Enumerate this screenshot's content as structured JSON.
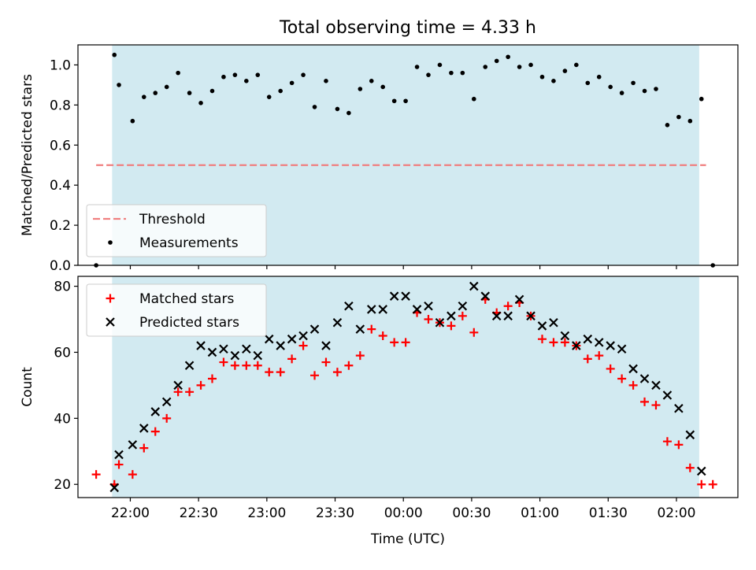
{
  "title": "Total observing time = 4.33 h",
  "colors": {
    "observing_window": "#add8e6",
    "threshold": "#f08080",
    "measurements": "#000000",
    "matched": "#ff0000",
    "predicted": "#000000"
  },
  "chart_data": [
    {
      "type": "scatter",
      "title": "Total observing time = 4.33 h",
      "xlabel": "",
      "ylabel": "Matched/Predicted stars",
      "xlim": [
        "21:37",
        "02:27"
      ],
      "ylim": [
        0,
        1.1
      ],
      "yticks": [
        "0.0",
        "0.2",
        "0.4",
        "0.6",
        "0.8",
        "1.0"
      ],
      "observing_window": [
        "21:52",
        "02:10"
      ],
      "threshold": {
        "name": "Threshold",
        "value": 0.5,
        "x_range": [
          "21:45",
          "02:13"
        ]
      },
      "legend": {
        "position": "bottom-left",
        "entries": [
          "Threshold",
          "Measurements"
        ]
      },
      "series": [
        {
          "name": "Measurements",
          "x": [
            "21:45",
            "21:53",
            "21:55",
            "22:01",
            "22:06",
            "22:11",
            "22:16",
            "22:21",
            "22:26",
            "22:31",
            "22:36",
            "22:41",
            "22:46",
            "22:51",
            "22:56",
            "23:01",
            "23:06",
            "23:11",
            "23:16",
            "23:21",
            "23:26",
            "23:31",
            "23:36",
            "23:41",
            "23:46",
            "23:51",
            "23:56",
            "24:01",
            "24:06",
            "24:11",
            "24:16",
            "24:21",
            "24:26",
            "24:31",
            "24:36",
            "24:41",
            "24:46",
            "24:51",
            "24:56",
            "25:01",
            "25:06",
            "25:11",
            "25:16",
            "25:21",
            "25:26",
            "25:31",
            "25:36",
            "25:41",
            "25:46",
            "25:51",
            "25:56",
            "26:01",
            "26:06",
            "26:11",
            "26:16"
          ],
          "y": [
            0.0,
            1.05,
            0.9,
            0.72,
            0.84,
            0.86,
            0.89,
            0.96,
            0.86,
            0.81,
            0.87,
            0.94,
            0.95,
            0.92,
            0.95,
            0.84,
            0.87,
            0.91,
            0.95,
            0.79,
            0.92,
            0.78,
            0.76,
            0.88,
            0.92,
            0.89,
            0.82,
            0.82,
            0.99,
            0.95,
            1.0,
            0.96,
            0.96,
            0.83,
            0.99,
            1.02,
            1.04,
            0.99,
            1.0,
            0.94,
            0.92,
            0.97,
            1.0,
            0.91,
            0.94,
            0.89,
            0.86,
            0.91,
            0.87,
            0.88,
            0.7,
            0.74,
            0.72,
            0.83,
            0.0
          ]
        }
      ]
    },
    {
      "type": "scatter",
      "title": "",
      "xlabel": "Time (UTC)",
      "ylabel": "Count",
      "xlim": [
        "21:37",
        "02:27"
      ],
      "ylim": [
        16,
        83
      ],
      "yticks": [
        "20",
        "40",
        "60",
        "80"
      ],
      "xticks": [
        "22:00",
        "22:30",
        "23:00",
        "23:30",
        "00:00",
        "00:30",
        "01:00",
        "01:30",
        "02:00"
      ],
      "observing_window": [
        "21:52",
        "02:10"
      ],
      "legend": {
        "position": "top-left",
        "entries": [
          "Matched stars",
          "Predicted stars"
        ]
      },
      "series": [
        {
          "name": "Matched stars",
          "x": [
            "21:45",
            "21:53",
            "21:55",
            "22:01",
            "22:06",
            "22:11",
            "22:16",
            "22:21",
            "22:26",
            "22:31",
            "22:36",
            "22:41",
            "22:46",
            "22:51",
            "22:56",
            "23:01",
            "23:06",
            "23:11",
            "23:16",
            "23:21",
            "23:26",
            "23:31",
            "23:36",
            "23:41",
            "23:46",
            "23:51",
            "23:56",
            "24:01",
            "24:06",
            "24:11",
            "24:16",
            "24:21",
            "24:26",
            "24:31",
            "24:36",
            "24:41",
            "24:46",
            "24:51",
            "24:56",
            "25:01",
            "25:06",
            "25:11",
            "25:16",
            "25:21",
            "25:26",
            "25:31",
            "25:36",
            "25:41",
            "25:46",
            "25:51",
            "25:56",
            "26:01",
            "26:06",
            "26:11",
            "26:16"
          ],
          "y": [
            23,
            20,
            26,
            23,
            31,
            36,
            40,
            48,
            48,
            50,
            52,
            57,
            56,
            56,
            56,
            54,
            54,
            58,
            62,
            53,
            57,
            54,
            56,
            59,
            67,
            65,
            63,
            63,
            72,
            70,
            69,
            68,
            71,
            66,
            76,
            72,
            74,
            75,
            71,
            64,
            63,
            63,
            62,
            58,
            59,
            55,
            52,
            50,
            45,
            44,
            33,
            32,
            25,
            20,
            20
          ]
        },
        {
          "name": "Predicted stars",
          "x": [
            "21:53",
            "21:55",
            "22:01",
            "22:06",
            "22:11",
            "22:16",
            "22:21",
            "22:26",
            "22:31",
            "22:36",
            "22:41",
            "22:46",
            "22:51",
            "22:56",
            "23:01",
            "23:06",
            "23:11",
            "23:16",
            "23:21",
            "23:26",
            "23:31",
            "23:36",
            "23:41",
            "23:46",
            "23:51",
            "23:56",
            "24:01",
            "24:06",
            "24:11",
            "24:16",
            "24:21",
            "24:26",
            "24:31",
            "24:36",
            "24:41",
            "24:46",
            "24:51",
            "24:56",
            "25:01",
            "25:06",
            "25:11",
            "25:16",
            "25:21",
            "25:26",
            "25:31",
            "25:36",
            "25:41",
            "25:46",
            "25:51",
            "25:56",
            "26:01",
            "26:06",
            "26:11"
          ],
          "y": [
            19,
            29,
            32,
            37,
            42,
            45,
            50,
            56,
            62,
            60,
            61,
            59,
            61,
            59,
            64,
            62,
            64,
            65,
            67,
            62,
            69,
            74,
            67,
            73,
            73,
            77,
            77,
            73,
            74,
            69,
            71,
            74,
            80,
            77,
            71,
            71,
            76,
            71,
            68,
            69,
            65,
            62,
            64,
            63,
            62,
            61,
            55,
            52,
            50,
            47,
            43,
            35,
            24
          ]
        }
      ]
    }
  ]
}
